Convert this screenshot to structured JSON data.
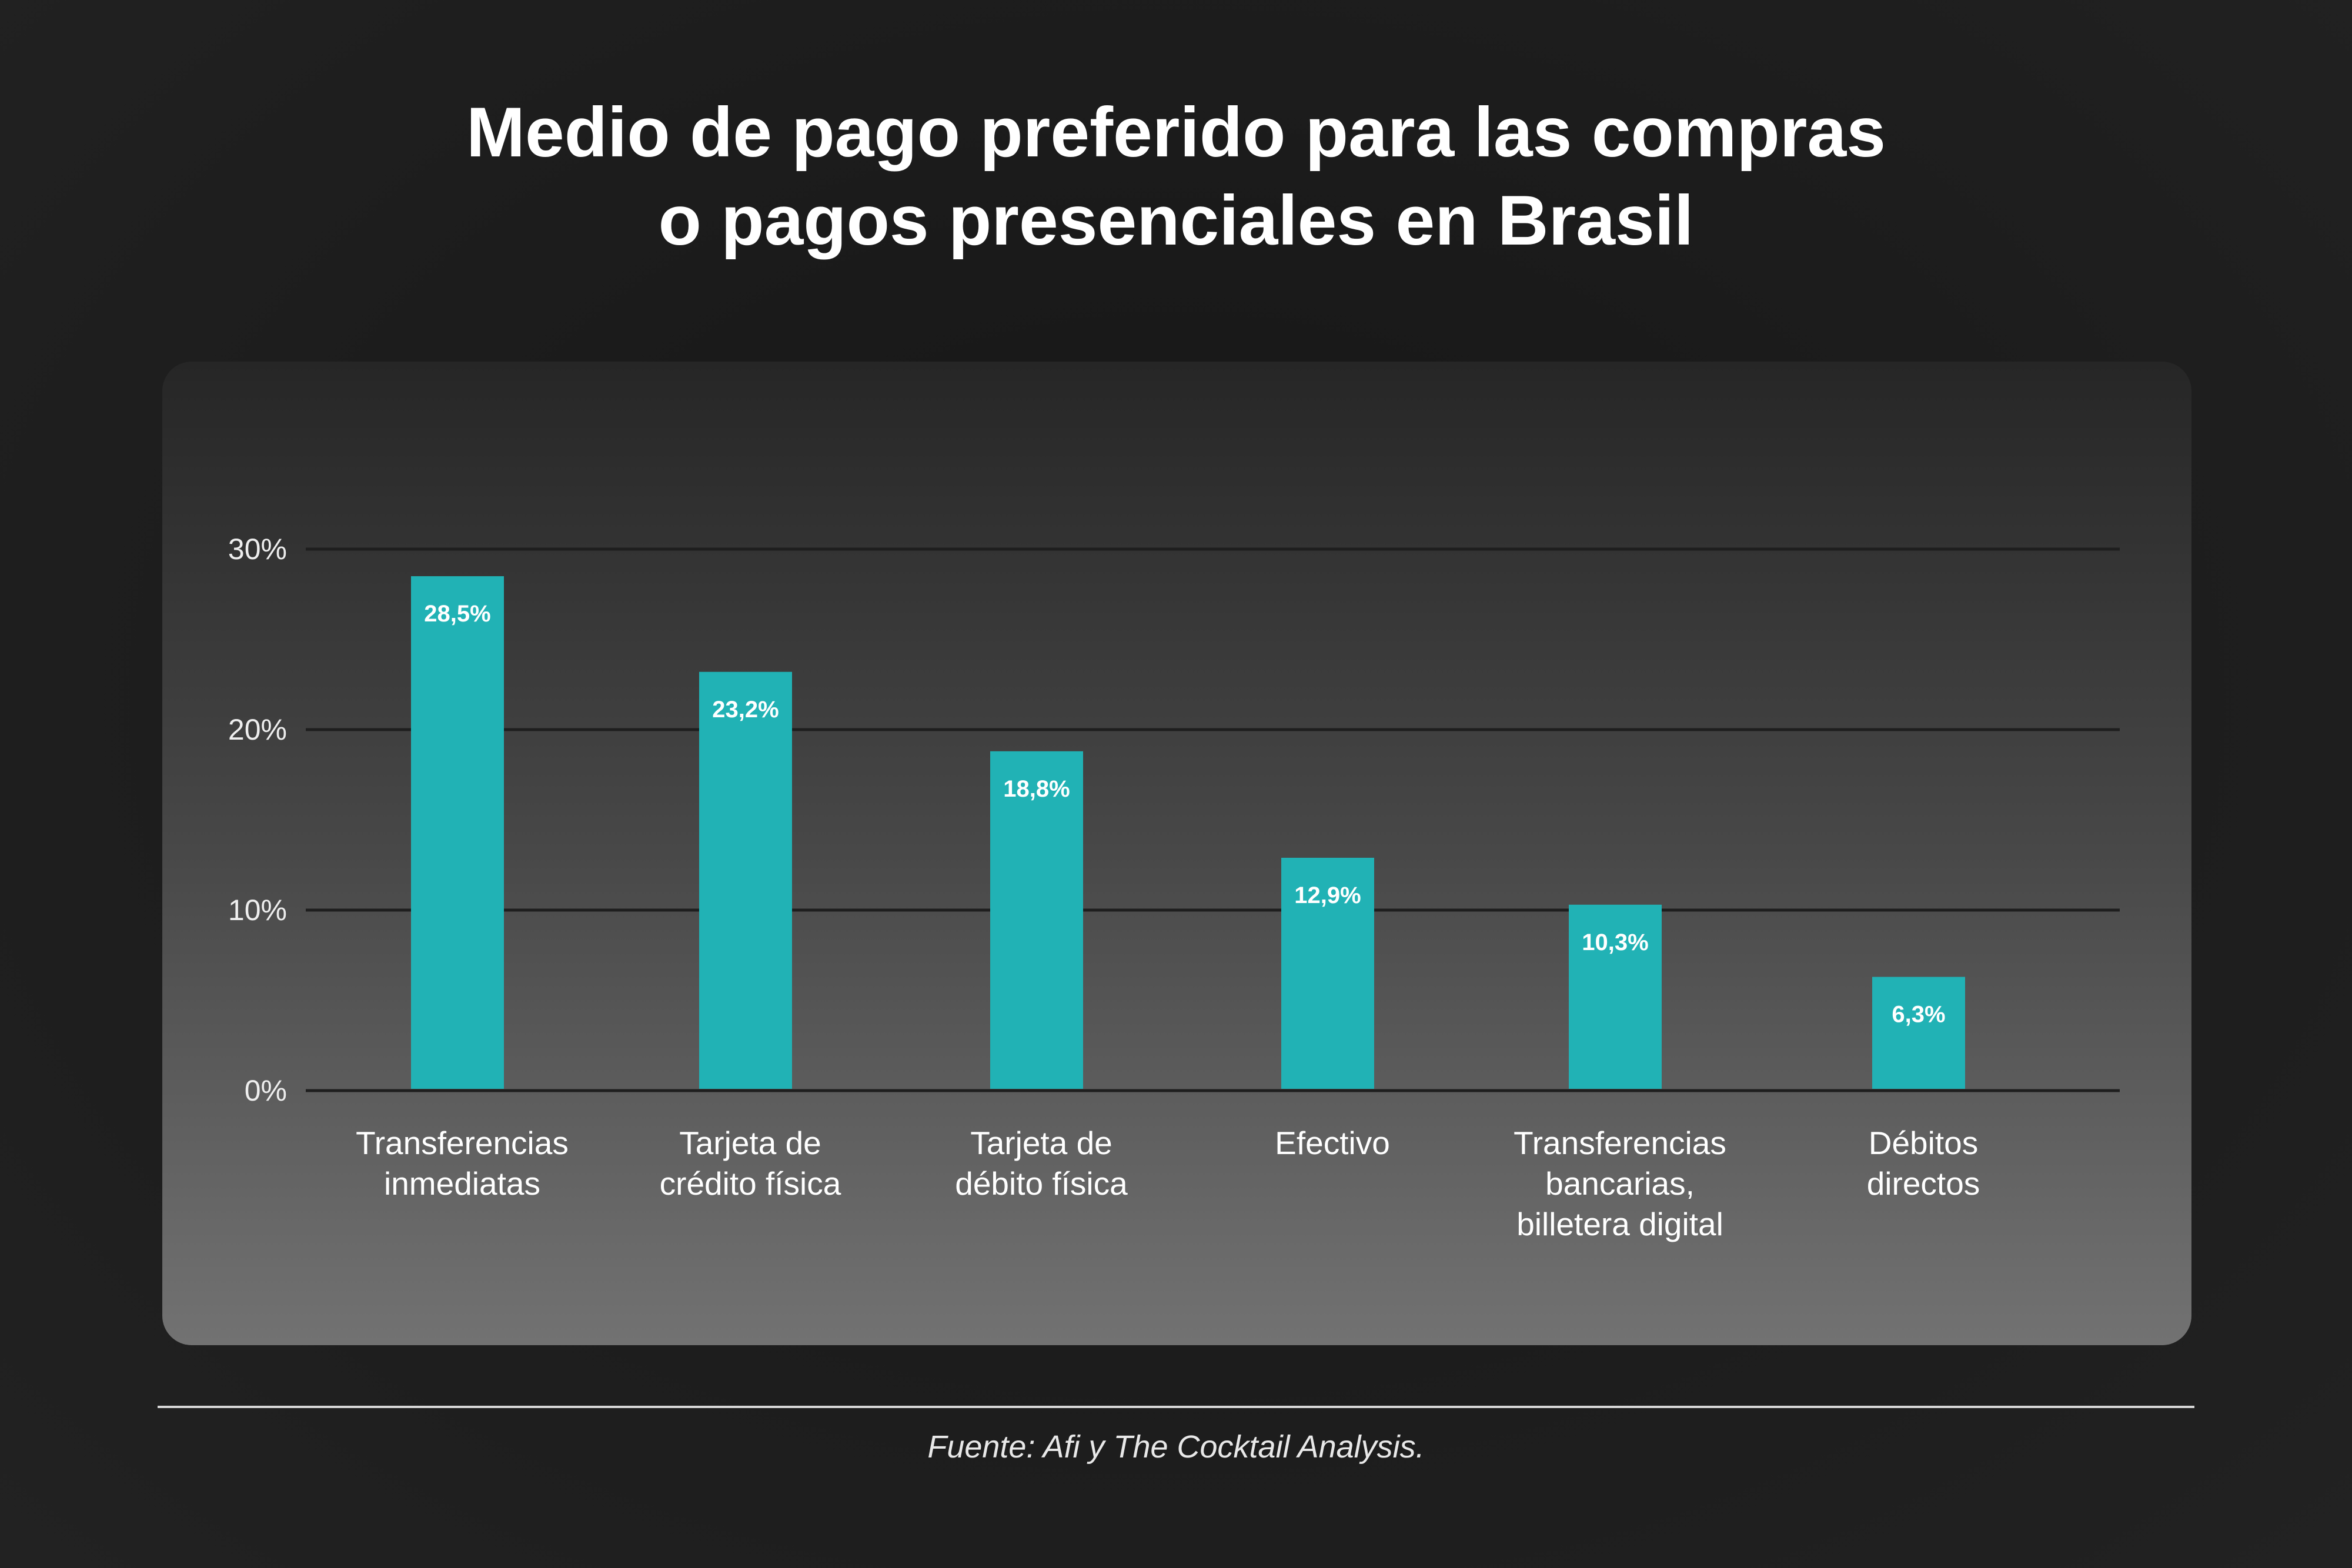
{
  "chart_data": {
    "type": "bar",
    "title": "Medio de pago preferido para las compras o pagos presenciales en Brasil",
    "title_lines": [
      "Medio de pago preferido para las compras",
      "o pagos presenciales en Brasil"
    ],
    "categories": [
      [
        "Transferencias",
        "inmediatas"
      ],
      [
        "Tarjeta de",
        "crédito física"
      ],
      [
        "Tarjeta de",
        "débito física"
      ],
      [
        "Efectivo"
      ],
      [
        "Transferencias",
        "bancarias,",
        "billetera digital"
      ],
      [
        "Débitos",
        "directos"
      ]
    ],
    "values": [
      28.5,
      23.2,
      18.8,
      12.9,
      10.3,
      6.3
    ],
    "data_labels": [
      "28,5%",
      "23,2%",
      "18,8%",
      "12,9%",
      "10,3%",
      "6,3%"
    ],
    "yticks": [
      0,
      10,
      20,
      30
    ],
    "ytick_labels": [
      "0%",
      "10%",
      "20%",
      "30%"
    ],
    "ylim": [
      0,
      30
    ],
    "xlabel": "",
    "ylabel": "",
    "grid": true,
    "legend": "none",
    "bar_color": "#21b2b5",
    "source": "Fuente: Afi y The Cocktail Analysis."
  }
}
